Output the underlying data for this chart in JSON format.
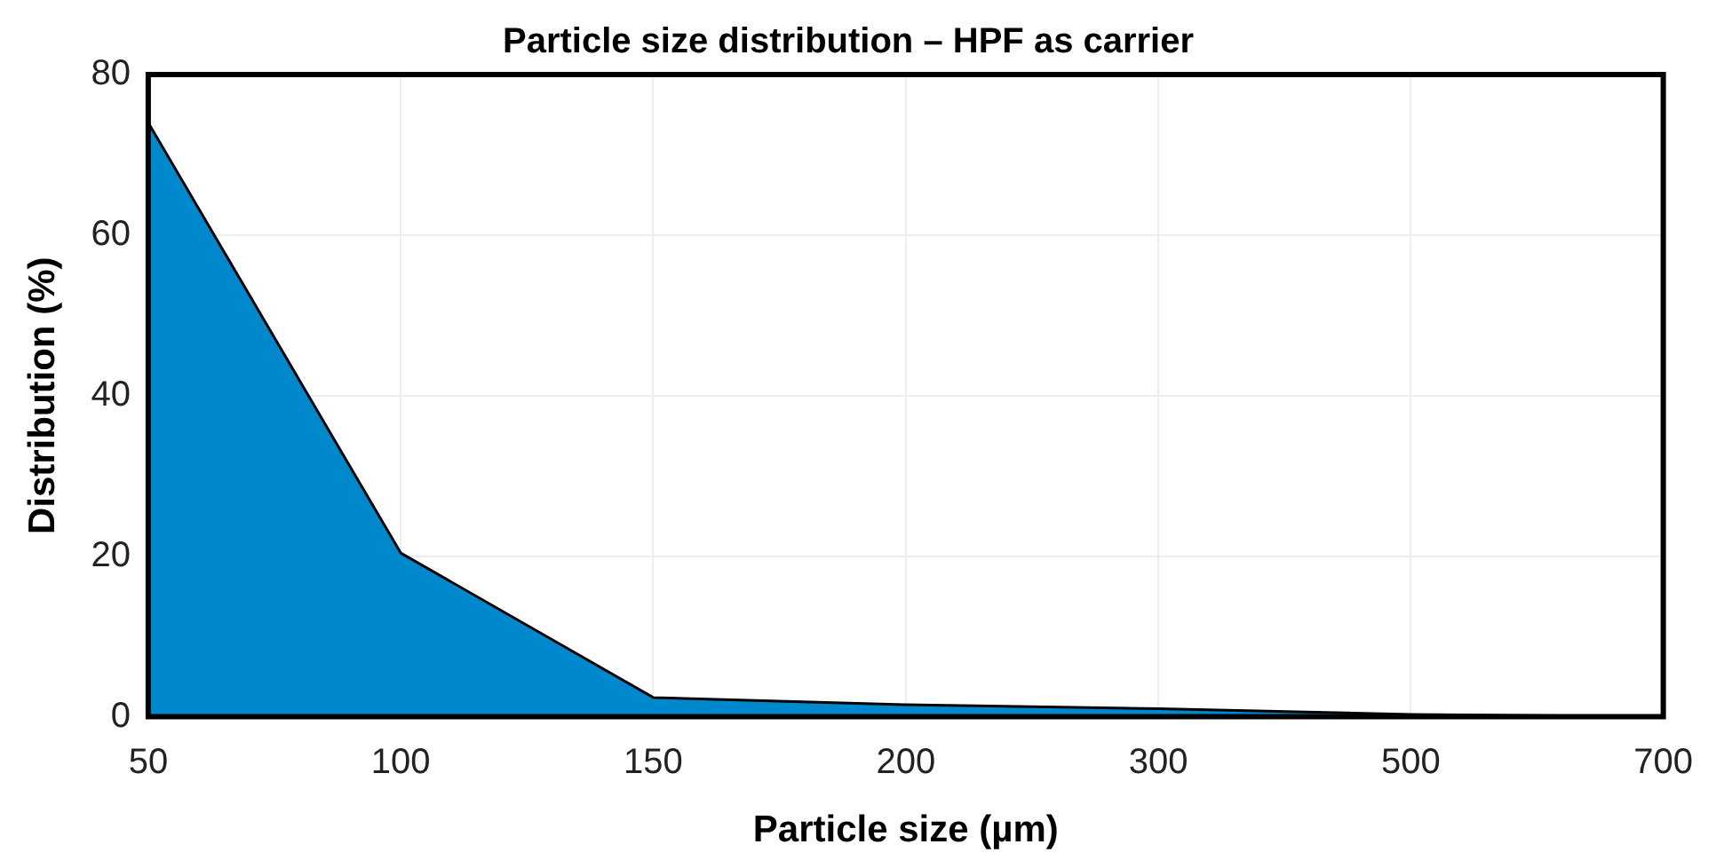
{
  "chart_data": {
    "type": "area",
    "title": "Particle size distribution – HPF as carrier",
    "xlabel": "Particle size (µm)",
    "ylabel": "Distribution (%)",
    "categories": [
      "50",
      "100",
      "150",
      "200",
      "300",
      "500",
      "700"
    ],
    "series": [
      {
        "color": "#0088cc",
        "values": [
          74,
          20.4,
          2.4,
          1.5,
          1,
          0.3,
          0
        ]
      }
    ],
    "ylim": [
      0,
      80
    ],
    "yticks": [
      0,
      20,
      40,
      60,
      80
    ],
    "grid": true,
    "legend": false
  }
}
